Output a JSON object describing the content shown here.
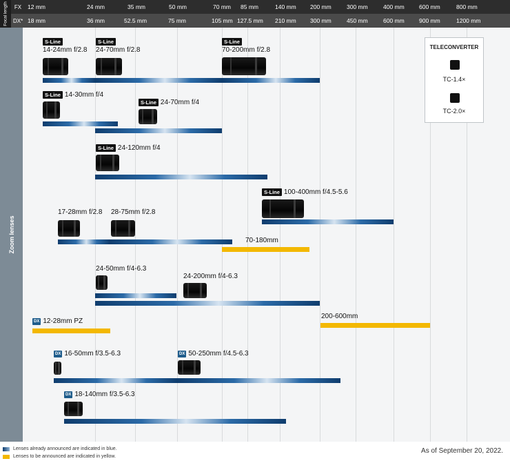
{
  "header": {
    "side_label": "Focal length",
    "fx_label": "FX",
    "dx_label": "DX*",
    "fx_ticks": [
      "12 mm",
      "24 mm",
      "35 mm",
      "50 mm",
      "70 mm",
      "85 mm",
      "140 mm",
      "200 mm",
      "300 mm",
      "400 mm",
      "600 mm",
      "800 mm"
    ],
    "dx_ticks": [
      "18 mm",
      "36 mm",
      "52.5 mm",
      "75 mm",
      "105 mm",
      "127.5 mm",
      "210 mm",
      "300 mm",
      "450 mm",
      "600 mm",
      "900 mm",
      "1200 mm"
    ]
  },
  "section_label": "Zoom lenses",
  "sline_text": "S-Line",
  "dx_text": "DX",
  "lenses": [
    {
      "label": "14-24mm f/2.8",
      "badge": "sline",
      "announced": true
    },
    {
      "label": "24-70mm f/2.8",
      "badge": "sline",
      "announced": true
    },
    {
      "label": "70-200mm f/2.8",
      "badge": "sline",
      "announced": true
    },
    {
      "label": "14-30mm f/4",
      "badge": "sline",
      "announced": true
    },
    {
      "label": "24-70mm f/4",
      "badge": "sline",
      "announced": true
    },
    {
      "label": "24-120mm f/4",
      "badge": "sline",
      "announced": true
    },
    {
      "label": "100-400mm f/4.5-5.6",
      "badge": "sline",
      "announced": true
    },
    {
      "label": "17-28mm f/2.8",
      "badge": "",
      "announced": true
    },
    {
      "label": "28-75mm f/2.8",
      "badge": "",
      "announced": true
    },
    {
      "label": "70-180mm",
      "badge": "",
      "announced": false
    },
    {
      "label": "24-50mm f/4-6.3",
      "badge": "",
      "announced": true
    },
    {
      "label": "24-200mm f/4-6.3",
      "badge": "",
      "announced": true
    },
    {
      "label": "12-28mm PZ",
      "badge": "dx",
      "announced": false
    },
    {
      "label": "200-600mm",
      "badge": "",
      "announced": false
    },
    {
      "label": "16-50mm f/3.5-6.3",
      "badge": "dx",
      "announced": true
    },
    {
      "label": "50-250mm f/4.5-6.3",
      "badge": "dx",
      "announced": true
    },
    {
      "label": "18-140mm f/3.5-6.3",
      "badge": "dx",
      "announced": true
    }
  ],
  "teleconverter": {
    "title": "TELECONVERTER",
    "items": [
      "TC-1.4×",
      "TC-2.0×"
    ]
  },
  "legend": {
    "blue": "Lenses already announced are indicated in blue.",
    "yellow": "Lenses to be announced are indicated in yellow.",
    "colors": {
      "blue": "#1f5d8c",
      "yellow": "#f3b800"
    }
  },
  "as_of": "As of September 20, 2022."
}
